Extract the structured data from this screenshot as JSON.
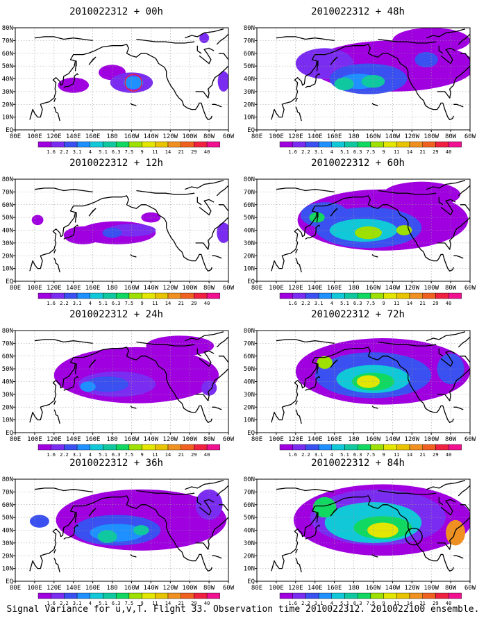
{
  "caption": "Signal Variance for u,v,T. Flight 33. Observation time 2010022312. 2010022100 ensemble.",
  "colors": {
    "scale": [
      "#a000e0",
      "#7a2cf0",
      "#3a50f0",
      "#1f90ff",
      "#10c8d8",
      "#10c8a0",
      "#10d860",
      "#9ee000",
      "#e2e600",
      "#e8c400",
      "#f09020",
      "#f06020",
      "#f02040",
      "#f01090"
    ],
    "land_outline": "#000000",
    "grid": "#9a9a9a"
  },
  "chart_data": [
    {
      "type": "heatmap",
      "title": "2010022312 + 00h",
      "lat_ticks": [
        "EQ",
        "10N",
        "20N",
        "30N",
        "40N",
        "50N",
        "60N",
        "70N",
        "80N"
      ],
      "lon_ticks": [
        "80E",
        "100E",
        "120E",
        "140E",
        "160E",
        "180",
        "160W",
        "140W",
        "120W",
        "100W",
        "80W",
        "60W"
      ],
      "colorbar_labels": [
        "1.6",
        "2.2",
        "3.1",
        "4",
        "5.1",
        "6.3",
        "7.5",
        "9",
        "11",
        "14",
        "21",
        "29",
        "40"
      ],
      "markers": [
        {
          "type": "circle",
          "lon": -158,
          "lat": 37,
          "color": "#f02040"
        }
      ],
      "blobs": [
        {
          "lon": -160,
          "lat": 37,
          "rlon": 22,
          "rlat": 8,
          "level": 1
        },
        {
          "lon": -158,
          "lat": 37,
          "rlon": 10,
          "rlat": 5,
          "level": 3
        },
        {
          "lon": 180,
          "lat": 45,
          "rlon": 14,
          "rlat": 6,
          "level": 0
        },
        {
          "lon": 140,
          "lat": 35,
          "rlon": 16,
          "rlat": 6,
          "level": 0
        },
        {
          "lon": -65,
          "lat": 38,
          "rlon": 6,
          "rlat": 8,
          "level": 1
        },
        {
          "lon": -85,
          "lat": 72,
          "rlon": 5,
          "rlat": 4,
          "level": 1
        }
      ]
    },
    {
      "type": "heatmap",
      "title": "2010022312 + 48h",
      "lat_ticks": [
        "EQ",
        "10N",
        "20N",
        "30N",
        "40N",
        "50N",
        "60N",
        "70N",
        "80N"
      ],
      "lon_ticks": [
        "80E",
        "100E",
        "120E",
        "140E",
        "160E",
        "180",
        "160W",
        "140W",
        "120W",
        "100W",
        "80W",
        "60W"
      ],
      "colorbar_labels": [
        "1.6",
        "2.2",
        "3.1",
        "4",
        "5.1",
        "6.3",
        "7.5",
        "9",
        "11",
        "14",
        "21",
        "29",
        "40"
      ],
      "markers": [],
      "blobs": [
        {
          "lon": -140,
          "lat": 50,
          "rlon": 85,
          "rlat": 20,
          "level": 0
        },
        {
          "lon": -100,
          "lat": 70,
          "rlon": 40,
          "rlat": 10,
          "level": 0
        },
        {
          "lon": 150,
          "lat": 52,
          "rlon": 30,
          "rlat": 12,
          "level": 1
        },
        {
          "lon": -165,
          "lat": 40,
          "rlon": 40,
          "rlat": 12,
          "level": 2
        },
        {
          "lon": -175,
          "lat": 38,
          "rlon": 20,
          "rlat": 6,
          "level": 3
        },
        {
          "lon": -160,
          "lat": 38,
          "rlon": 12,
          "rlat": 5,
          "level": 5
        },
        {
          "lon": 170,
          "lat": 36,
          "rlon": 10,
          "rlat": 5,
          "level": 5
        },
        {
          "lon": -105,
          "lat": 55,
          "rlon": 12,
          "rlat": 6,
          "level": 2
        }
      ]
    },
    {
      "type": "heatmap",
      "title": "2010022312 + 12h",
      "lat_ticks": [
        "EQ",
        "10N",
        "20N",
        "30N",
        "40N",
        "50N",
        "60N",
        "70N",
        "80N"
      ],
      "lon_ticks": [
        "80E",
        "100E",
        "120E",
        "140E",
        "160E",
        "180",
        "160W",
        "140W",
        "120W",
        "100W",
        "80W",
        "60W"
      ],
      "colorbar_labels": [
        "1.6",
        "2.2",
        "3.1",
        "4",
        "5.1",
        "6.3",
        "7.5",
        "9",
        "11",
        "14",
        "21",
        "29",
        "40"
      ],
      "markers": [],
      "blobs": [
        {
          "lon": -175,
          "lat": 38,
          "rlon": 40,
          "rlat": 9,
          "level": 0
        },
        {
          "lon": 150,
          "lat": 36,
          "rlon": 20,
          "rlat": 7,
          "level": 0
        },
        {
          "lon": -160,
          "lat": 40,
          "rlon": 25,
          "rlat": 5,
          "level": 1
        },
        {
          "lon": 180,
          "lat": 38,
          "rlon": 10,
          "rlat": 4,
          "level": 2
        },
        {
          "lon": 103,
          "lat": 48,
          "rlon": 6,
          "rlat": 4,
          "level": 0
        },
        {
          "lon": -65,
          "lat": 38,
          "rlon": 7,
          "rlat": 8,
          "level": 1
        },
        {
          "lon": -140,
          "lat": 50,
          "rlon": 10,
          "rlat": 4,
          "level": 0
        }
      ]
    },
    {
      "type": "heatmap",
      "title": "2010022312 + 60h",
      "lat_ticks": [
        "EQ",
        "10N",
        "20N",
        "30N",
        "40N",
        "50N",
        "60N",
        "70N",
        "80N"
      ],
      "lon_ticks": [
        "80E",
        "100E",
        "120E",
        "140E",
        "160E",
        "180",
        "160W",
        "140W",
        "120W",
        "100W",
        "80W",
        "60W"
      ],
      "colorbar_labels": [
        "1.6",
        "2.2",
        "3.1",
        "4",
        "5.1",
        "6.3",
        "7.5",
        "9",
        "11",
        "14",
        "21",
        "29",
        "40"
      ],
      "markers": [],
      "blobs": [
        {
          "lon": -150,
          "lat": 48,
          "rlon": 88,
          "rlat": 24,
          "level": 0
        },
        {
          "lon": -110,
          "lat": 68,
          "rlon": 40,
          "rlat": 10,
          "level": 0
        },
        {
          "lon": -165,
          "lat": 42,
          "rlon": 55,
          "rlat": 16,
          "level": 2
        },
        {
          "lon": 150,
          "lat": 52,
          "rlon": 25,
          "rlat": 10,
          "level": 2
        },
        {
          "lon": -170,
          "lat": 40,
          "rlon": 35,
          "rlat": 9,
          "level": 4
        },
        {
          "lon": -165,
          "lat": 38,
          "rlon": 14,
          "rlat": 5,
          "level": 7
        },
        {
          "lon": -128,
          "lat": 40,
          "rlon": 8,
          "rlat": 4,
          "level": 7
        },
        {
          "lon": 142,
          "lat": 50,
          "rlon": 8,
          "rlat": 4,
          "level": 6
        }
      ]
    },
    {
      "type": "heatmap",
      "title": "2010022312 + 24h",
      "lat_ticks": [
        "EQ",
        "10N",
        "20N",
        "30N",
        "40N",
        "50N",
        "60N",
        "70N",
        "80N"
      ],
      "lon_ticks": [
        "80E",
        "100E",
        "120E",
        "140E",
        "160E",
        "180",
        "160W",
        "140W",
        "120W",
        "100W",
        "80W",
        "60W"
      ],
      "colorbar_labels": [
        "1.6",
        "2.2",
        "3.1",
        "4",
        "5.1",
        "6.3",
        "7.5",
        "9",
        "11",
        "14",
        "21",
        "29",
        "40"
      ],
      "markers": [],
      "blobs": [
        {
          "lon": -155,
          "lat": 45,
          "rlon": 85,
          "rlat": 22,
          "level": 0
        },
        {
          "lon": -110,
          "lat": 68,
          "rlon": 35,
          "rlat": 8,
          "level": 0
        },
        {
          "lon": -175,
          "lat": 38,
          "rlon": 40,
          "rlat": 10,
          "level": 1
        },
        {
          "lon": 175,
          "lat": 38,
          "rlon": 22,
          "rlat": 6,
          "level": 2
        },
        {
          "lon": 155,
          "lat": 36,
          "rlon": 8,
          "rlat": 4,
          "level": 3
        },
        {
          "lon": -80,
          "lat": 35,
          "rlon": 8,
          "rlat": 6,
          "level": 1
        }
      ]
    },
    {
      "type": "heatmap",
      "title": "2010022312 + 72h",
      "lat_ticks": [
        "EQ",
        "10N",
        "20N",
        "30N",
        "40N",
        "50N",
        "60N",
        "70N",
        "80N"
      ],
      "lon_ticks": [
        "80E",
        "100E",
        "120E",
        "140E",
        "160E",
        "180",
        "160W",
        "140W",
        "120W",
        "100W",
        "80W",
        "60W"
      ],
      "colorbar_labels": [
        "1.6",
        "2.2",
        "3.1",
        "4",
        "5.1",
        "6.3",
        "7.5",
        "9",
        "11",
        "14",
        "21",
        "29",
        "40"
      ],
      "markers": [],
      "blobs": [
        {
          "lon": -150,
          "lat": 48,
          "rlon": 90,
          "rlat": 26,
          "level": 0
        },
        {
          "lon": -160,
          "lat": 45,
          "rlon": 60,
          "rlat": 18,
          "level": 2
        },
        {
          "lon": -160,
          "lat": 42,
          "rlon": 38,
          "rlat": 11,
          "level": 4
        },
        {
          "lon": -160,
          "lat": 40,
          "rlon": 22,
          "rlat": 7,
          "level": 6
        },
        {
          "lon": -165,
          "lat": 40,
          "rlon": 12,
          "rlat": 5,
          "level": 8
        },
        {
          "lon": 150,
          "lat": 55,
          "rlon": 8,
          "rlat": 5,
          "level": 7
        },
        {
          "lon": -80,
          "lat": 50,
          "rlon": 14,
          "rlat": 12,
          "level": 2
        }
      ]
    },
    {
      "type": "heatmap",
      "title": "2010022312 + 36h",
      "lat_ticks": [
        "EQ",
        "10N",
        "20N",
        "30N",
        "40N",
        "50N",
        "60N",
        "70N",
        "80N"
      ],
      "lon_ticks": [
        "80E",
        "100E",
        "120E",
        "140E",
        "160E",
        "180",
        "160W",
        "140W",
        "120W",
        "100W",
        "80W",
        "60W"
      ],
      "colorbar_labels": [
        "1.6",
        "2.2",
        "3.1",
        "4",
        "5.1",
        "6.3",
        "7.5",
        "9",
        "11",
        "14",
        "21",
        "29",
        "40"
      ],
      "markers": [],
      "blobs": [
        {
          "lon": -150,
          "lat": 48,
          "rlon": 88,
          "rlat": 24,
          "level": 0
        },
        {
          "lon": -175,
          "lat": 40,
          "rlon": 45,
          "rlat": 12,
          "level": 2
        },
        {
          "lon": -175,
          "lat": 38,
          "rlon": 28,
          "rlat": 7,
          "level": 3
        },
        {
          "lon": 175,
          "lat": 35,
          "rlon": 10,
          "rlat": 5,
          "level": 5
        },
        {
          "lon": -150,
          "lat": 40,
          "rlon": 8,
          "rlat": 4,
          "level": 5
        },
        {
          "lon": 105,
          "lat": 47,
          "rlon": 10,
          "rlat": 5,
          "level": 2
        },
        {
          "lon": -80,
          "lat": 60,
          "rlon": 14,
          "rlat": 12,
          "level": 1
        }
      ]
    },
    {
      "type": "heatmap",
      "title": "2010022312 + 84h",
      "lat_ticks": [
        "EQ",
        "10N",
        "20N",
        "30N",
        "40N",
        "50N",
        "60N",
        "70N",
        "80N"
      ],
      "lon_ticks": [
        "80E",
        "100E",
        "120E",
        "140E",
        "160E",
        "180",
        "160W",
        "140W",
        "120W",
        "100W",
        "80W",
        "60W"
      ],
      "colorbar_labels": [
        "1.6",
        "2.2",
        "3.1",
        "4",
        "5.1",
        "6.3",
        "7.5",
        "9",
        "11",
        "14",
        "21",
        "29",
        "40"
      ],
      "markers": [
        {
          "type": "circle",
          "lon": -118,
          "lat": 35,
          "color": "#000000"
        }
      ],
      "blobs": [
        {
          "lon": -150,
          "lat": 48,
          "rlon": 92,
          "rlat": 28,
          "level": 0
        },
        {
          "lon": -155,
          "lat": 50,
          "rlon": 70,
          "rlat": 22,
          "level": 1
        },
        {
          "lon": -160,
          "lat": 46,
          "rlon": 50,
          "rlat": 16,
          "level": 4
        },
        {
          "lon": -150,
          "lat": 42,
          "rlon": 30,
          "rlat": 9,
          "level": 6
        },
        {
          "lon": -150,
          "lat": 40,
          "rlon": 16,
          "rlat": 6,
          "level": 8
        },
        {
          "lon": 150,
          "lat": 58,
          "rlon": 12,
          "rlat": 8,
          "level": 6
        },
        {
          "lon": -75,
          "lat": 38,
          "rlon": 10,
          "rlat": 10,
          "level": 10
        }
      ]
    }
  ]
}
